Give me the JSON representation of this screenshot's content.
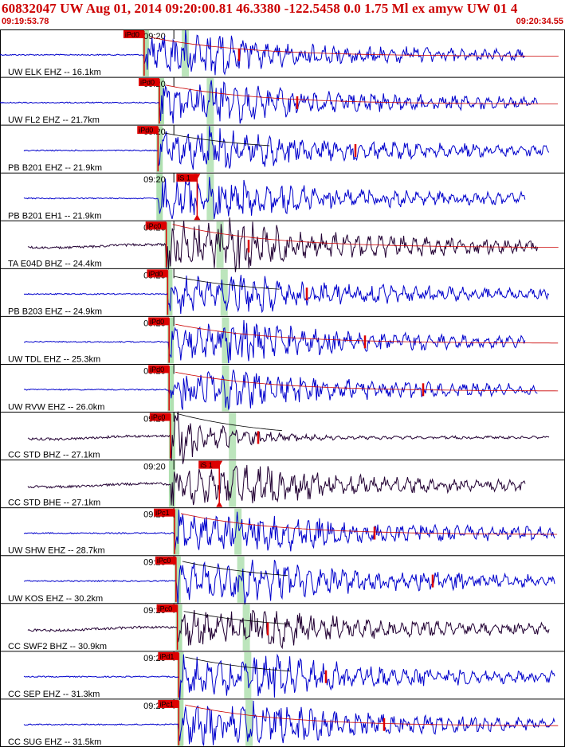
{
  "header": {
    "title": "60832047 UW Aug 01, 2014 09:20:00.81   46.3380 -122.5458  0.0 1.75 Ml ex amyw UW 01   4",
    "start_time": "09:19:53.78",
    "end_time": "09:20:34.55"
  },
  "colors": {
    "trace_blue": "#0000cc",
    "trace_dark": "#220033",
    "pick_red": "#dd0000",
    "window_green": "#b0e0b0",
    "decay_red": "#cc0000",
    "decay_black": "#000000"
  },
  "chart_data": {
    "type": "seismogram",
    "time_range": [
      "09:19:53.78",
      "09:20:34.55"
    ],
    "tick_label": "09:20",
    "channels": [
      {
        "label": "UW ELK EHZ -- 16.1km",
        "pick_label": "iPd0",
        "p_time": 3.5,
        "s_time": 6.1,
        "amp": 0.45,
        "dark": false,
        "decay": "red",
        "pick_type": "P"
      },
      {
        "label": "UW FL2 EHZ -- 21.7km",
        "pick_label": "iPd0",
        "p_time": 4.6,
        "s_time": 7.9,
        "amp": 0.45,
        "dark": false,
        "decay": "red",
        "pick_type": "P"
      },
      {
        "label": "PB B201 EHZ -- 21.9km",
        "pick_label": "iPd0",
        "p_time": 4.5,
        "s_time": 7.9,
        "amp": 0.45,
        "dark": false,
        "decay": "black",
        "pick_type": "P"
      },
      {
        "label": "PB B201 EH1 -- 21.9km",
        "pick_label": "iS 1",
        "p_time": 4.5,
        "s_time": 7.9,
        "amp": 0.45,
        "dark": false,
        "decay": "none",
        "pick_type": "S"
      },
      {
        "label": "TA E04D BHZ -- 24.4km",
        "pick_label": "iPc0",
        "p_time": 5.1,
        "s_time": 8.6,
        "amp": 0.55,
        "dark": true,
        "decay": "red",
        "pick_type": "P"
      },
      {
        "label": "PB B203 EHZ -- 24.9km",
        "pick_label": "iPd0",
        "p_time": 5.2,
        "s_time": 8.9,
        "amp": 0.45,
        "dark": false,
        "decay": "black",
        "pick_type": "P"
      },
      {
        "label": "UW TDL EHZ -- 25.3km",
        "pick_label": "iPd0",
        "p_time": 5.3,
        "s_time": 9.0,
        "amp": 0.45,
        "dark": false,
        "decay": "red",
        "pick_type": "P"
      },
      {
        "label": "UW RVW EHZ -- 26.0km",
        "pick_label": "iPd0",
        "p_time": 5.3,
        "s_time": 9.0,
        "amp": 0.45,
        "dark": false,
        "decay": "red",
        "pick_type": "P"
      },
      {
        "label": "CC STD BHZ -- 27.1km",
        "pick_label": "iPc0",
        "p_time": 5.4,
        "s_time": 9.5,
        "amp": 0.6,
        "dark": true,
        "decay": "black",
        "pick_type": "P"
      },
      {
        "label": "CC STD BHE -- 27.1km",
        "pick_label": "iS 1",
        "p_time": 5.4,
        "s_time": 9.5,
        "amp": 0.45,
        "dark": true,
        "decay": "none",
        "pick_type": "S"
      },
      {
        "label": "UW SHW EHZ -- 28.7km",
        "pick_label": "iPc1",
        "p_time": 5.7,
        "s_time": 9.9,
        "amp": 0.5,
        "dark": false,
        "decay": "red",
        "pick_type": "P"
      },
      {
        "label": "UW KOS EHZ -- 30.2km",
        "pick_label": "iPc0",
        "p_time": 5.8,
        "s_time": 10.1,
        "amp": 0.5,
        "dark": false,
        "decay": "black",
        "pick_type": "P"
      },
      {
        "label": "CC SWF2 BHZ -- 30.9km",
        "pick_label": "iPc0",
        "p_time": 5.9,
        "s_time": 10.5,
        "amp": 0.45,
        "dark": true,
        "decay": "black",
        "pick_type": "P"
      },
      {
        "label": "CC SEP EHZ -- 31.3km",
        "pick_label": "iPd1",
        "p_time": 6.0,
        "s_time": 10.6,
        "amp": 0.5,
        "dark": false,
        "decay": "black",
        "pick_type": "P"
      },
      {
        "label": "CC SUG EHZ -- 31.5km",
        "pick_label": "iPc1",
        "p_time": 6.0,
        "s_time": 10.7,
        "amp": 0.5,
        "dark": false,
        "decay": "red",
        "pick_type": "P"
      }
    ]
  }
}
